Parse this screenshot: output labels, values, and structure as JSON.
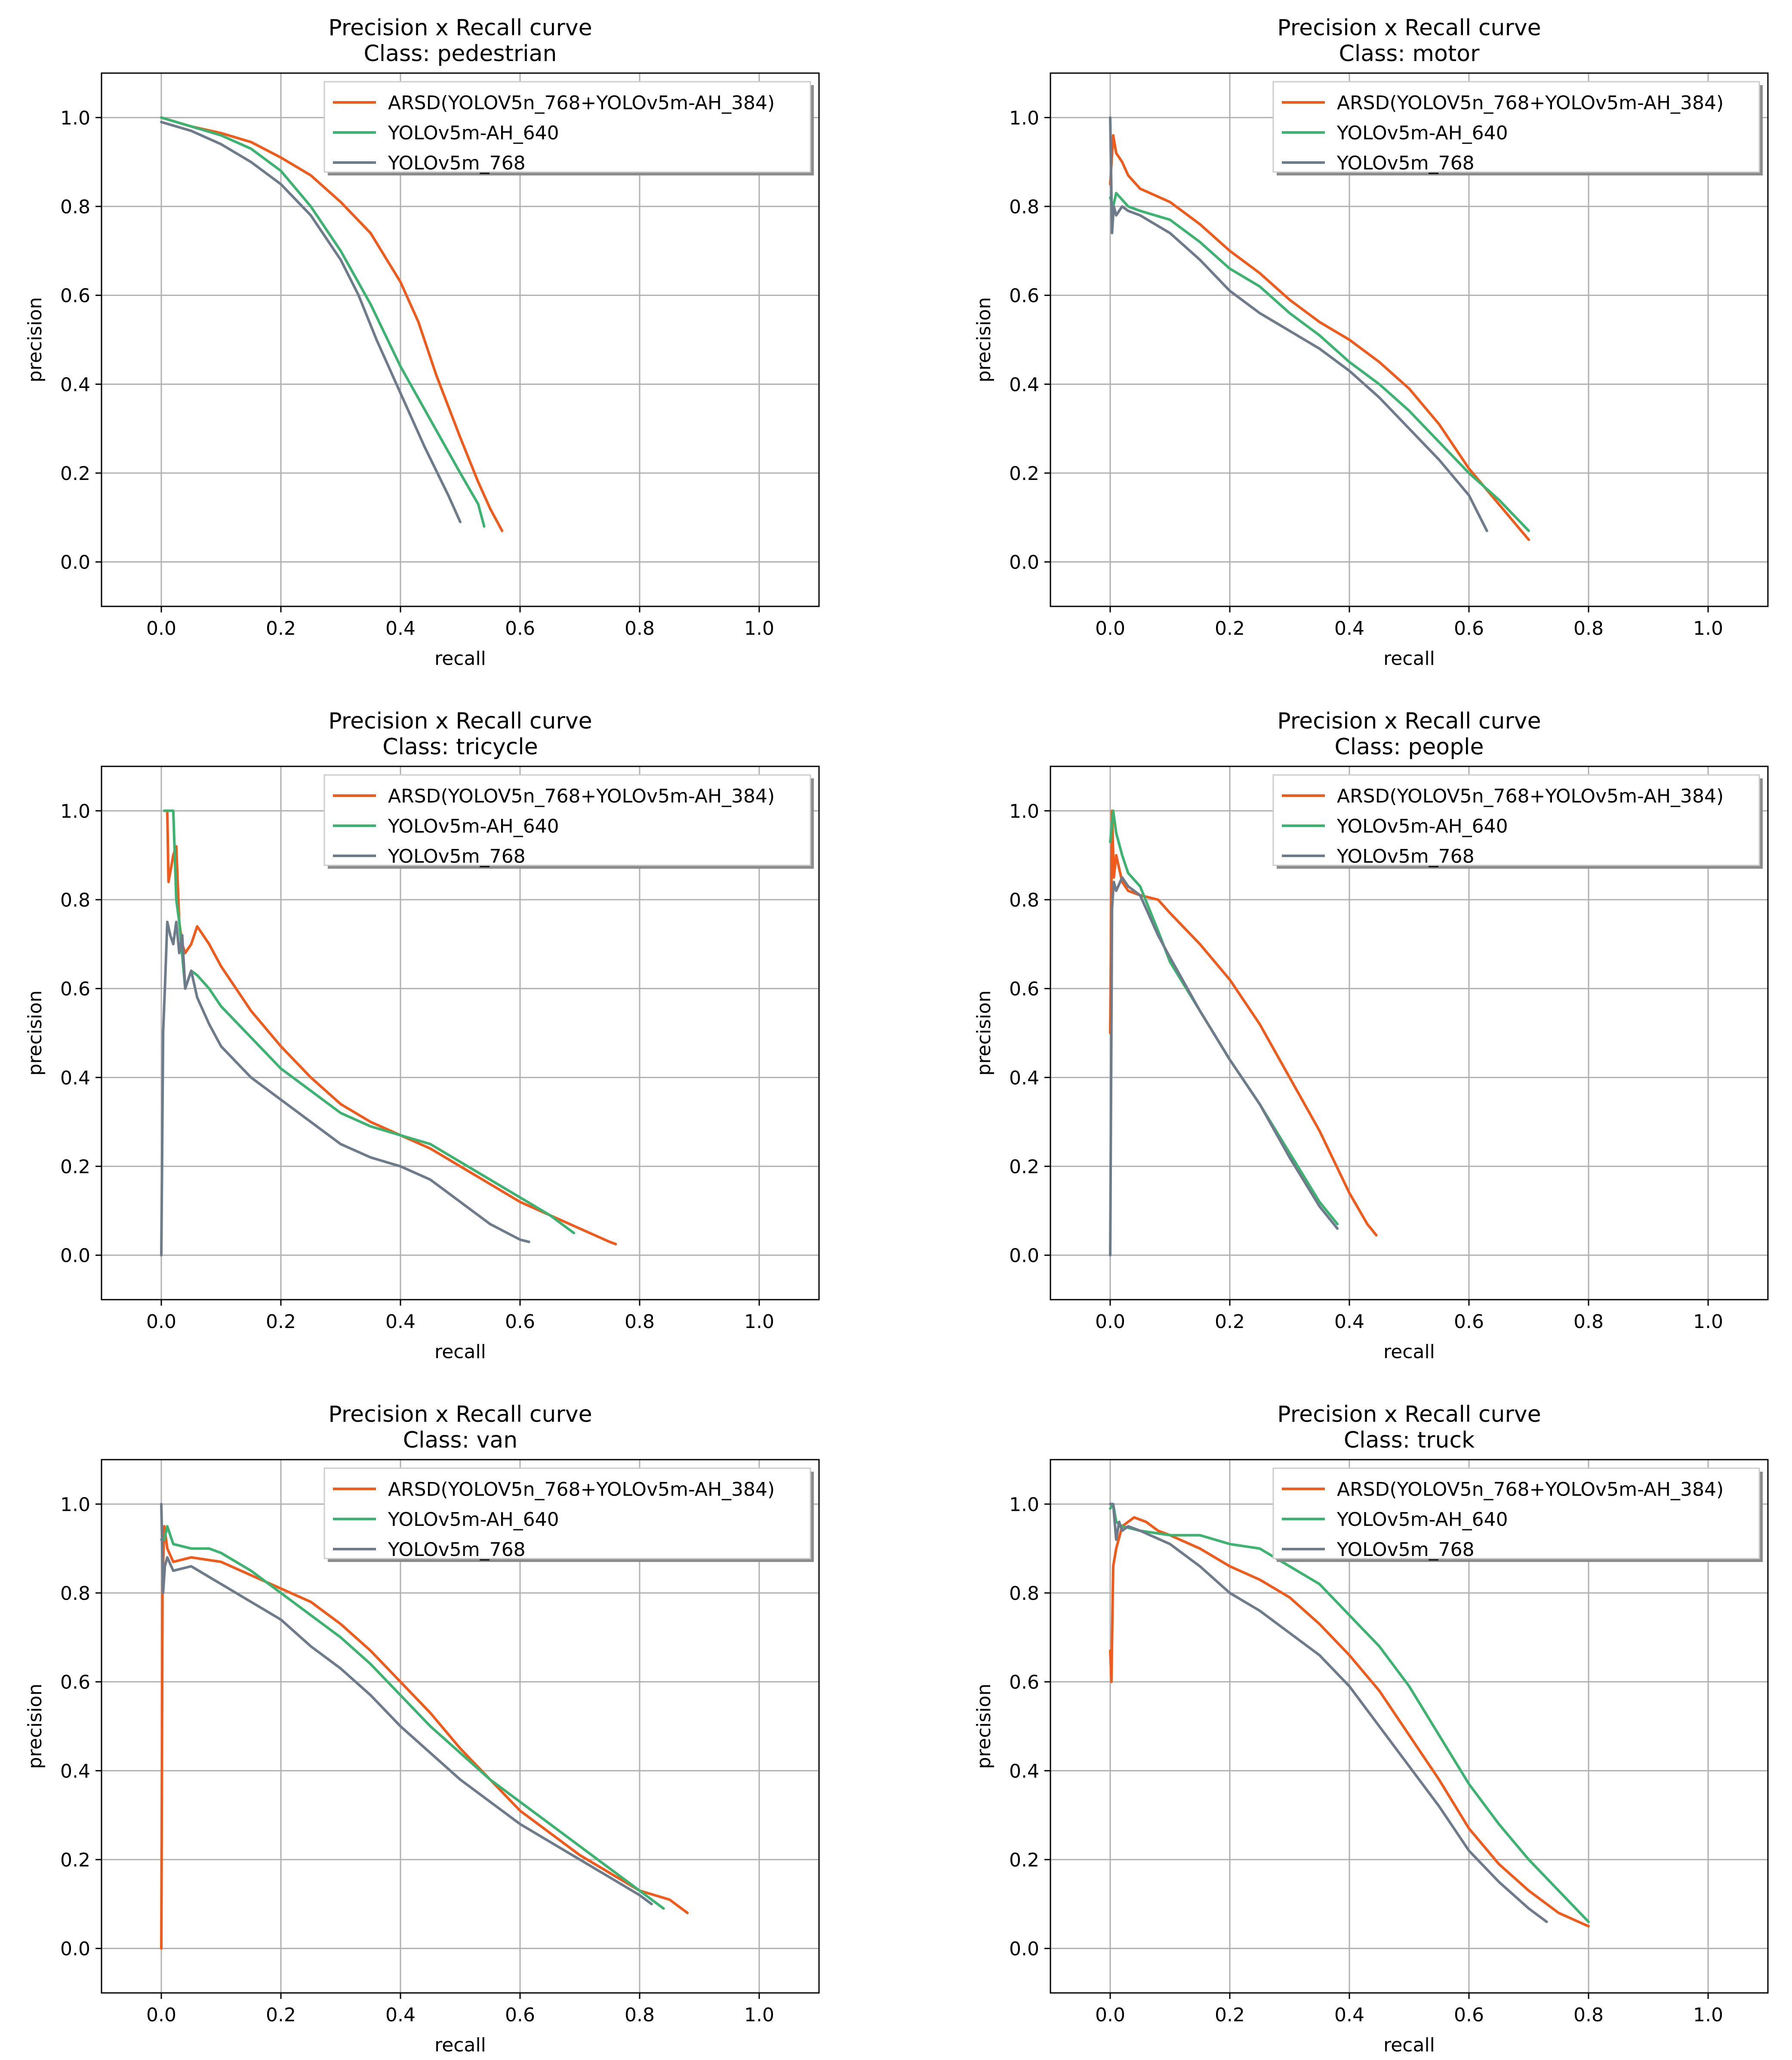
{
  "colors": {
    "ARSD": "#f05a1a",
    "AH640": "#3cb371",
    "M768": "#6e7b8b"
  },
  "chart_data": [
    {
      "type": "line",
      "title": "Precision x Recall curve",
      "subtitle": "Class: pedestrian",
      "xlabel": "recall",
      "ylabel": "precision",
      "xlim": [
        -0.1,
        1.1
      ],
      "ylim": [
        -0.1,
        1.1
      ],
      "xticks": [
        "0.0",
        "0.2",
        "0.4",
        "0.6",
        "0.8",
        "1.0"
      ],
      "yticks": [
        "0.0",
        "0.2",
        "0.4",
        "0.6",
        "0.8",
        "1.0"
      ],
      "grid": true,
      "legend": "top-right",
      "series": [
        {
          "name": "ARSD(YOLOV5n_768+YOLOv5m-AH_384)",
          "color_key": "ARSD",
          "x": [
            0,
            0.05,
            0.1,
            0.15,
            0.2,
            0.25,
            0.3,
            0.35,
            0.4,
            0.43,
            0.46,
            0.5,
            0.53,
            0.55,
            0.57
          ],
          "y": [
            1.0,
            0.98,
            0.965,
            0.945,
            0.91,
            0.87,
            0.81,
            0.74,
            0.63,
            0.54,
            0.42,
            0.28,
            0.18,
            0.12,
            0.07
          ]
        },
        {
          "name": "YOLOv5m-AH_640",
          "color_key": "AH640",
          "x": [
            0,
            0.05,
            0.1,
            0.15,
            0.2,
            0.25,
            0.3,
            0.35,
            0.4,
            0.45,
            0.5,
            0.53,
            0.54
          ],
          "y": [
            1.0,
            0.98,
            0.96,
            0.93,
            0.88,
            0.8,
            0.7,
            0.58,
            0.44,
            0.32,
            0.2,
            0.13,
            0.08
          ]
        },
        {
          "name": "YOLOv5m_768",
          "color_key": "M768",
          "x": [
            0,
            0.05,
            0.1,
            0.15,
            0.2,
            0.25,
            0.3,
            0.33,
            0.36,
            0.4,
            0.44,
            0.48,
            0.5
          ],
          "y": [
            0.99,
            0.97,
            0.94,
            0.9,
            0.85,
            0.78,
            0.68,
            0.6,
            0.5,
            0.38,
            0.26,
            0.15,
            0.09
          ]
        }
      ]
    },
    {
      "type": "line",
      "title": "Precision x Recall curve",
      "subtitle": "Class: motor",
      "xlabel": "recall",
      "ylabel": "precision",
      "xlim": [
        -0.1,
        1.1
      ],
      "ylim": [
        -0.1,
        1.1
      ],
      "xticks": [
        "0.0",
        "0.2",
        "0.4",
        "0.6",
        "0.8",
        "1.0"
      ],
      "yticks": [
        "0.0",
        "0.2",
        "0.4",
        "0.6",
        "0.8",
        "1.0"
      ],
      "grid": true,
      "legend": "top-right",
      "series": [
        {
          "name": "ARSD(YOLOV5n_768+YOLOv5m-AH_384)",
          "color_key": "ARSD",
          "x": [
            0,
            0.005,
            0.01,
            0.02,
            0.03,
            0.05,
            0.1,
            0.15,
            0.2,
            0.25,
            0.3,
            0.35,
            0.4,
            0.45,
            0.5,
            0.55,
            0.6,
            0.65,
            0.7
          ],
          "y": [
            0.85,
            0.96,
            0.92,
            0.9,
            0.87,
            0.84,
            0.81,
            0.76,
            0.7,
            0.65,
            0.59,
            0.54,
            0.5,
            0.45,
            0.39,
            0.31,
            0.21,
            0.13,
            0.05
          ]
        },
        {
          "name": "YOLOv5m-AH_640",
          "color_key": "AH640",
          "x": [
            0,
            0.005,
            0.01,
            0.03,
            0.05,
            0.1,
            0.15,
            0.2,
            0.25,
            0.3,
            0.35,
            0.4,
            0.45,
            0.5,
            0.55,
            0.6,
            0.65,
            0.7
          ],
          "y": [
            0.82,
            0.8,
            0.83,
            0.8,
            0.79,
            0.77,
            0.72,
            0.66,
            0.62,
            0.56,
            0.51,
            0.45,
            0.4,
            0.34,
            0.27,
            0.2,
            0.14,
            0.07
          ]
        },
        {
          "name": "YOLOv5m_768",
          "color_key": "M768",
          "x": [
            0,
            0.003,
            0.006,
            0.01,
            0.02,
            0.03,
            0.05,
            0.1,
            0.15,
            0.2,
            0.25,
            0.3,
            0.35,
            0.4,
            0.45,
            0.5,
            0.55,
            0.6,
            0.63
          ],
          "y": [
            1.0,
            0.74,
            0.8,
            0.78,
            0.8,
            0.79,
            0.78,
            0.74,
            0.68,
            0.61,
            0.56,
            0.52,
            0.48,
            0.43,
            0.37,
            0.3,
            0.23,
            0.15,
            0.07
          ]
        }
      ]
    },
    {
      "type": "line",
      "title": "Precision x Recall curve",
      "subtitle": "Class: tricycle",
      "xlabel": "recall",
      "ylabel": "precision",
      "xlim": [
        -0.1,
        1.1
      ],
      "ylim": [
        -0.1,
        1.1
      ],
      "xticks": [
        "0.0",
        "0.2",
        "0.4",
        "0.6",
        "0.8",
        "1.0"
      ],
      "yticks": [
        "0.0",
        "0.2",
        "0.4",
        "0.6",
        "0.8",
        "1.0"
      ],
      "grid": true,
      "legend": "top-right",
      "series": [
        {
          "name": "ARSD(YOLOV5n_768+YOLOv5m-AH_384)",
          "color_key": "ARSD",
          "x": [
            0.005,
            0.01,
            0.012,
            0.02,
            0.025,
            0.03,
            0.035,
            0.04,
            0.05,
            0.06,
            0.08,
            0.1,
            0.15,
            0.2,
            0.25,
            0.3,
            0.35,
            0.4,
            0.45,
            0.5,
            0.55,
            0.6,
            0.65,
            0.7,
            0.75,
            0.76
          ],
          "y": [
            1.0,
            1.0,
            0.84,
            0.9,
            0.92,
            0.75,
            0.7,
            0.68,
            0.7,
            0.74,
            0.7,
            0.65,
            0.55,
            0.47,
            0.4,
            0.34,
            0.3,
            0.27,
            0.24,
            0.2,
            0.16,
            0.12,
            0.09,
            0.06,
            0.03,
            0.025
          ]
        },
        {
          "name": "YOLOv5m-AH_640",
          "color_key": "AH640",
          "x": [
            0.005,
            0.01,
            0.02,
            0.025,
            0.03,
            0.04,
            0.05,
            0.06,
            0.08,
            0.1,
            0.15,
            0.2,
            0.25,
            0.3,
            0.35,
            0.4,
            0.45,
            0.5,
            0.55,
            0.6,
            0.65,
            0.69
          ],
          "y": [
            1.0,
            1.0,
            1.0,
            0.8,
            0.75,
            0.6,
            0.64,
            0.63,
            0.6,
            0.56,
            0.49,
            0.42,
            0.37,
            0.32,
            0.29,
            0.27,
            0.25,
            0.21,
            0.17,
            0.13,
            0.09,
            0.05
          ]
        },
        {
          "name": "YOLOv5m_768",
          "color_key": "M768",
          "x": [
            0,
            0.003,
            0.006,
            0.01,
            0.015,
            0.02,
            0.025,
            0.03,
            0.035,
            0.04,
            0.05,
            0.06,
            0.08,
            0.1,
            0.15,
            0.2,
            0.25,
            0.3,
            0.35,
            0.4,
            0.45,
            0.5,
            0.55,
            0.6,
            0.615
          ],
          "y": [
            0,
            0.5,
            0.6,
            0.75,
            0.72,
            0.7,
            0.75,
            0.68,
            0.72,
            0.6,
            0.64,
            0.58,
            0.52,
            0.47,
            0.4,
            0.35,
            0.3,
            0.25,
            0.22,
            0.2,
            0.17,
            0.12,
            0.07,
            0.035,
            0.03
          ]
        }
      ]
    },
    {
      "type": "line",
      "title": "Precision x Recall curve",
      "subtitle": "Class: people",
      "xlabel": "recall",
      "ylabel": "precision",
      "xlim": [
        -0.1,
        1.1
      ],
      "ylim": [
        -0.1,
        1.1
      ],
      "xticks": [
        "0.0",
        "0.2",
        "0.4",
        "0.6",
        "0.8",
        "1.0"
      ],
      "yticks": [
        "0.0",
        "0.2",
        "0.4",
        "0.6",
        "0.8",
        "1.0"
      ],
      "grid": true,
      "legend": "top-right",
      "series": [
        {
          "name": "ARSD(YOLOV5n_768+YOLOv5m-AH_384)",
          "color_key": "ARSD",
          "x": [
            0,
            0.003,
            0.006,
            0.01,
            0.02,
            0.03,
            0.05,
            0.08,
            0.1,
            0.15,
            0.2,
            0.25,
            0.3,
            0.35,
            0.4,
            0.43,
            0.445
          ],
          "y": [
            0.5,
            1.0,
            0.85,
            0.9,
            0.84,
            0.82,
            0.81,
            0.8,
            0.77,
            0.7,
            0.62,
            0.52,
            0.4,
            0.28,
            0.14,
            0.07,
            0.045
          ]
        },
        {
          "name": "YOLOv5m-AH_640",
          "color_key": "AH640",
          "x": [
            0,
            0.005,
            0.01,
            0.02,
            0.03,
            0.05,
            0.08,
            0.1,
            0.15,
            0.2,
            0.25,
            0.3,
            0.35,
            0.38
          ],
          "y": [
            0.93,
            1.0,
            0.95,
            0.9,
            0.86,
            0.83,
            0.73,
            0.66,
            0.55,
            0.44,
            0.34,
            0.23,
            0.12,
            0.07
          ]
        },
        {
          "name": "YOLOv5m_768",
          "color_key": "M768",
          "x": [
            0,
            0.003,
            0.006,
            0.01,
            0.02,
            0.03,
            0.05,
            0.08,
            0.1,
            0.15,
            0.2,
            0.25,
            0.3,
            0.35,
            0.38
          ],
          "y": [
            0,
            0.78,
            0.84,
            0.82,
            0.85,
            0.83,
            0.81,
            0.72,
            0.67,
            0.55,
            0.44,
            0.34,
            0.22,
            0.11,
            0.06
          ]
        }
      ]
    },
    {
      "type": "line",
      "title": "Precision x Recall curve",
      "subtitle": "Class: van",
      "xlabel": "recall",
      "ylabel": "precision",
      "xlim": [
        -0.1,
        1.1
      ],
      "ylim": [
        -0.1,
        1.1
      ],
      "xticks": [
        "0.0",
        "0.2",
        "0.4",
        "0.6",
        "0.8",
        "1.0"
      ],
      "yticks": [
        "0.0",
        "0.2",
        "0.4",
        "0.6",
        "0.8",
        "1.0"
      ],
      "grid": true,
      "legend": "top-right",
      "series": [
        {
          "name": "ARSD(YOLOV5n_768+YOLOv5m-AH_384)",
          "color_key": "ARSD",
          "x": [
            0,
            0.002,
            0.005,
            0.01,
            0.02,
            0.05,
            0.1,
            0.15,
            0.2,
            0.25,
            0.3,
            0.35,
            0.4,
            0.45,
            0.5,
            0.55,
            0.6,
            0.65,
            0.7,
            0.75,
            0.8,
            0.85,
            0.88
          ],
          "y": [
            0,
            0.82,
            0.95,
            0.9,
            0.87,
            0.88,
            0.87,
            0.84,
            0.81,
            0.78,
            0.73,
            0.67,
            0.6,
            0.53,
            0.45,
            0.38,
            0.31,
            0.26,
            0.21,
            0.17,
            0.13,
            0.11,
            0.08
          ]
        },
        {
          "name": "YOLOv5m-AH_640",
          "color_key": "AH640",
          "x": [
            0,
            0.005,
            0.01,
            0.02,
            0.05,
            0.08,
            0.1,
            0.15,
            0.2,
            0.25,
            0.3,
            0.35,
            0.4,
            0.45,
            0.5,
            0.55,
            0.6,
            0.65,
            0.7,
            0.75,
            0.8,
            0.84
          ],
          "y": [
            0.92,
            0.92,
            0.95,
            0.91,
            0.9,
            0.9,
            0.89,
            0.85,
            0.8,
            0.75,
            0.7,
            0.64,
            0.57,
            0.5,
            0.44,
            0.38,
            0.33,
            0.28,
            0.23,
            0.18,
            0.13,
            0.09
          ]
        },
        {
          "name": "YOLOv5m_768",
          "color_key": "M768",
          "x": [
            0,
            0.003,
            0.006,
            0.01,
            0.02,
            0.05,
            0.1,
            0.15,
            0.2,
            0.25,
            0.3,
            0.35,
            0.4,
            0.45,
            0.5,
            0.55,
            0.6,
            0.65,
            0.7,
            0.75,
            0.8,
            0.82
          ],
          "y": [
            1.0,
            0.8,
            0.86,
            0.88,
            0.85,
            0.86,
            0.82,
            0.78,
            0.74,
            0.68,
            0.63,
            0.57,
            0.5,
            0.44,
            0.38,
            0.33,
            0.28,
            0.24,
            0.2,
            0.16,
            0.12,
            0.1
          ]
        }
      ]
    },
    {
      "type": "line",
      "title": "Precision x Recall curve",
      "subtitle": "Class: truck",
      "xlabel": "recall",
      "ylabel": "precision",
      "xlim": [
        -0.1,
        1.1
      ],
      "ylim": [
        -0.1,
        1.1
      ],
      "xticks": [
        "0.0",
        "0.2",
        "0.4",
        "0.6",
        "0.8",
        "1.0"
      ],
      "yticks": [
        "0.0",
        "0.2",
        "0.4",
        "0.6",
        "0.8",
        "1.0"
      ],
      "grid": true,
      "legend": "top-right",
      "series": [
        {
          "name": "ARSD(YOLOV5n_768+YOLOv5m-AH_384)",
          "color_key": "ARSD",
          "x": [
            0,
            0.002,
            0.005,
            0.01,
            0.02,
            0.04,
            0.06,
            0.08,
            0.1,
            0.15,
            0.2,
            0.25,
            0.3,
            0.35,
            0.4,
            0.45,
            0.5,
            0.55,
            0.6,
            0.65,
            0.7,
            0.75,
            0.8
          ],
          "y": [
            0.67,
            0.6,
            0.86,
            0.9,
            0.95,
            0.97,
            0.96,
            0.94,
            0.93,
            0.9,
            0.86,
            0.83,
            0.79,
            0.73,
            0.66,
            0.58,
            0.48,
            0.38,
            0.27,
            0.19,
            0.13,
            0.08,
            0.05
          ]
        },
        {
          "name": "YOLOv5m-AH_640",
          "color_key": "AH640",
          "x": [
            0,
            0.005,
            0.01,
            0.02,
            0.05,
            0.1,
            0.15,
            0.2,
            0.25,
            0.3,
            0.35,
            0.4,
            0.45,
            0.5,
            0.55,
            0.6,
            0.65,
            0.7,
            0.75,
            0.8
          ],
          "y": [
            0.99,
            1.0,
            0.96,
            0.95,
            0.94,
            0.93,
            0.93,
            0.91,
            0.9,
            0.86,
            0.82,
            0.75,
            0.68,
            0.59,
            0.48,
            0.37,
            0.28,
            0.2,
            0.13,
            0.06
          ]
        },
        {
          "name": "YOLOv5m_768",
          "color_key": "M768",
          "x": [
            0,
            0.005,
            0.01,
            0.015,
            0.02,
            0.03,
            0.05,
            0.1,
            0.15,
            0.2,
            0.25,
            0.3,
            0.35,
            0.4,
            0.45,
            0.5,
            0.55,
            0.6,
            0.65,
            0.7,
            0.73
          ],
          "y": [
            1.0,
            1.0,
            0.92,
            0.96,
            0.94,
            0.95,
            0.94,
            0.91,
            0.86,
            0.8,
            0.76,
            0.71,
            0.66,
            0.59,
            0.5,
            0.41,
            0.32,
            0.22,
            0.15,
            0.09,
            0.06
          ]
        }
      ]
    }
  ]
}
